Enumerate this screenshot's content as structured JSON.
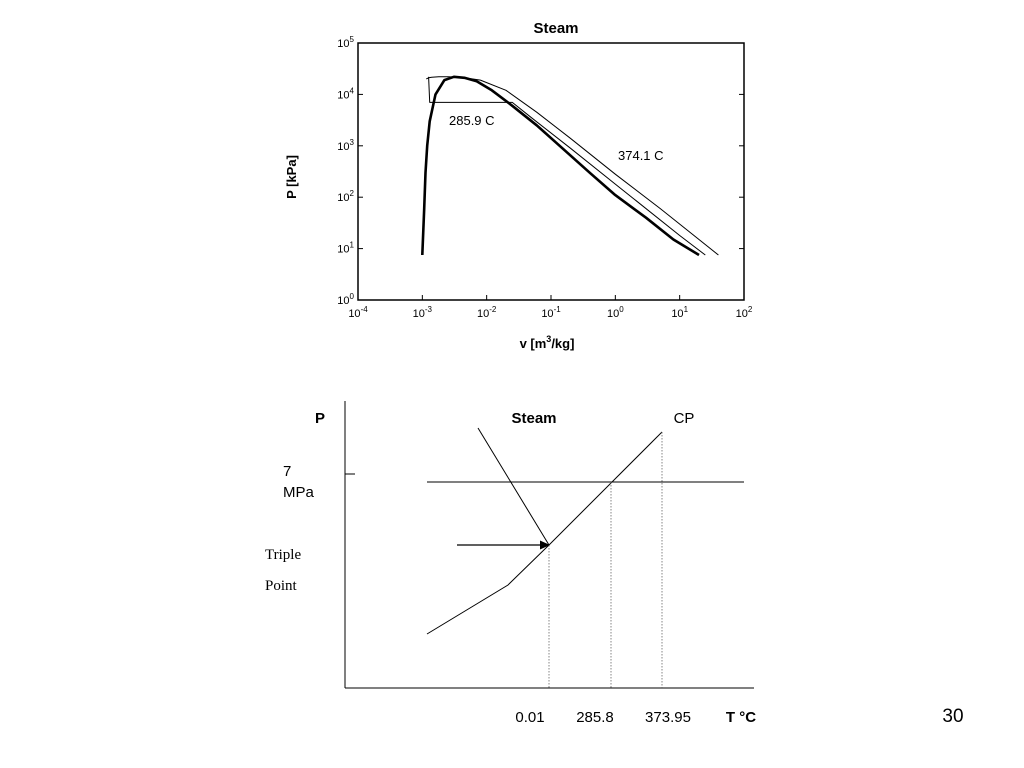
{
  "chart_data": [
    {
      "type": "line",
      "title": "Steam",
      "xlabel": "v [m³/kg]",
      "ylabel": "P [kPa]",
      "x_scale": "log",
      "y_scale": "log",
      "xlim": [
        0.0001,
        100
      ],
      "ylim": [
        1,
        100000
      ],
      "x_ticks": [
        {
          "base": "10",
          "exp": "-4"
        },
        {
          "base": "10",
          "exp": "-3"
        },
        {
          "base": "10",
          "exp": "-2"
        },
        {
          "base": "10",
          "exp": "-1"
        },
        {
          "base": "10",
          "exp": "0"
        },
        {
          "base": "10",
          "exp": "1"
        },
        {
          "base": "10",
          "exp": "2"
        }
      ],
      "y_ticks": [
        {
          "base": "10",
          "exp": "0"
        },
        {
          "base": "10",
          "exp": "1"
        },
        {
          "base": "10",
          "exp": "2"
        },
        {
          "base": "10",
          "exp": "3"
        },
        {
          "base": "10",
          "exp": "4"
        },
        {
          "base": "10",
          "exp": "5"
        }
      ],
      "grid": false,
      "annotations": [
        "285.9 C",
        "374.1 C"
      ],
      "series": [
        {
          "role": "saturation-dome",
          "style": "thick",
          "x": [
            0.001,
            0.00103,
            0.00107,
            0.00112,
            0.00119,
            0.0013,
            0.0016,
            0.0022,
            0.0031,
            0.0045,
            0.007,
            0.012,
            0.025,
            0.06,
            0.15,
            0.4,
            1.0,
            3.0,
            8.0,
            20.0
          ],
          "y": [
            7.5,
            20,
            60,
            300,
            1000,
            3000,
            10000,
            19000,
            22000,
            21000,
            18000,
            12000,
            6000,
            2500,
            900,
            300,
            110,
            40,
            15,
            7.5
          ]
        },
        {
          "role": "isotherm",
          "label": "374.1 C",
          "style": "thin",
          "x": [
            0.00115,
            0.0012,
            0.00125,
            0.0014,
            0.0018,
            0.0025,
            0.004,
            0.008,
            0.02,
            0.06,
            0.2,
            1.0,
            5.0,
            15.0,
            40.0
          ],
          "y": [
            20000,
            20500,
            21000,
            21500,
            22000,
            22000,
            21500,
            19000,
            12000,
            4500,
            1400,
            280,
            60,
            20,
            7.5
          ]
        },
        {
          "role": "isotherm",
          "label": "285.9 C",
          "style": "thin",
          "x": [
            0.00125,
            0.0013,
            0.025,
            0.05,
            0.2,
            1.0,
            10.0,
            25.0
          ],
          "y": [
            22000,
            7000,
            7000,
            3500,
            900,
            180,
            18,
            7.5
          ]
        }
      ]
    },
    {
      "type": "diagram",
      "title": "Steam",
      "xlabel": "T °C",
      "ylabel": "P",
      "y_tick_label": [
        "7",
        "MPa"
      ],
      "x_tick_labels": [
        "0.01",
        "285.8",
        "373.95"
      ],
      "labels": {
        "critical_point": "CP",
        "triple_point": [
          "Triple",
          "Point"
        ]
      }
    }
  ],
  "footer": {
    "slide_number": "30"
  }
}
